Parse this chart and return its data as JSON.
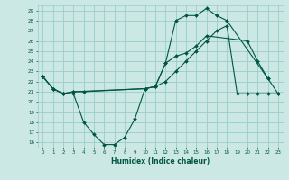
{
  "title": "",
  "xlabel": "Humidex (Indice chaleur)",
  "bg_color": "#cce8e4",
  "grid_color": "#99cccc",
  "line_color": "#005544",
  "ylim": [
    15.5,
    29.5
  ],
  "xlim": [
    -0.5,
    23.5
  ],
  "yticks": [
    16,
    17,
    18,
    19,
    20,
    21,
    22,
    23,
    24,
    25,
    26,
    27,
    28,
    29
  ],
  "xticks": [
    0,
    1,
    2,
    3,
    4,
    5,
    6,
    7,
    8,
    9,
    10,
    11,
    12,
    13,
    14,
    15,
    16,
    17,
    18,
    19,
    20,
    21,
    22,
    23
  ],
  "l1x": [
    0,
    1,
    2,
    3,
    4,
    5,
    6,
    7,
    8,
    9,
    10,
    11,
    12,
    13,
    14,
    15,
    16,
    17,
    18,
    22
  ],
  "l1y": [
    22.5,
    21.3,
    20.8,
    20.8,
    18.0,
    16.8,
    15.8,
    15.8,
    16.5,
    18.3,
    21.3,
    21.5,
    23.8,
    28.0,
    28.5,
    28.5,
    29.2,
    28.5,
    28.0,
    22.3
  ],
  "l2x": [
    0,
    1,
    2,
    3,
    4,
    10,
    11,
    12,
    13,
    14,
    15,
    16,
    17,
    18,
    19,
    20,
    21,
    22,
    23
  ],
  "l2y": [
    22.5,
    21.3,
    20.8,
    21.0,
    21.0,
    21.3,
    21.5,
    22.0,
    23.0,
    24.0,
    25.0,
    26.0,
    27.0,
    27.5,
    20.8,
    20.8,
    20.8,
    20.8,
    20.8
  ],
  "l3x": [
    0,
    1,
    2,
    3,
    10,
    11,
    12,
    13,
    14,
    15,
    16,
    20,
    21,
    22,
    23
  ],
  "l3y": [
    22.5,
    21.3,
    20.8,
    21.0,
    21.3,
    21.5,
    23.8,
    24.5,
    24.8,
    25.5,
    26.5,
    26.0,
    24.0,
    22.3,
    20.8
  ]
}
